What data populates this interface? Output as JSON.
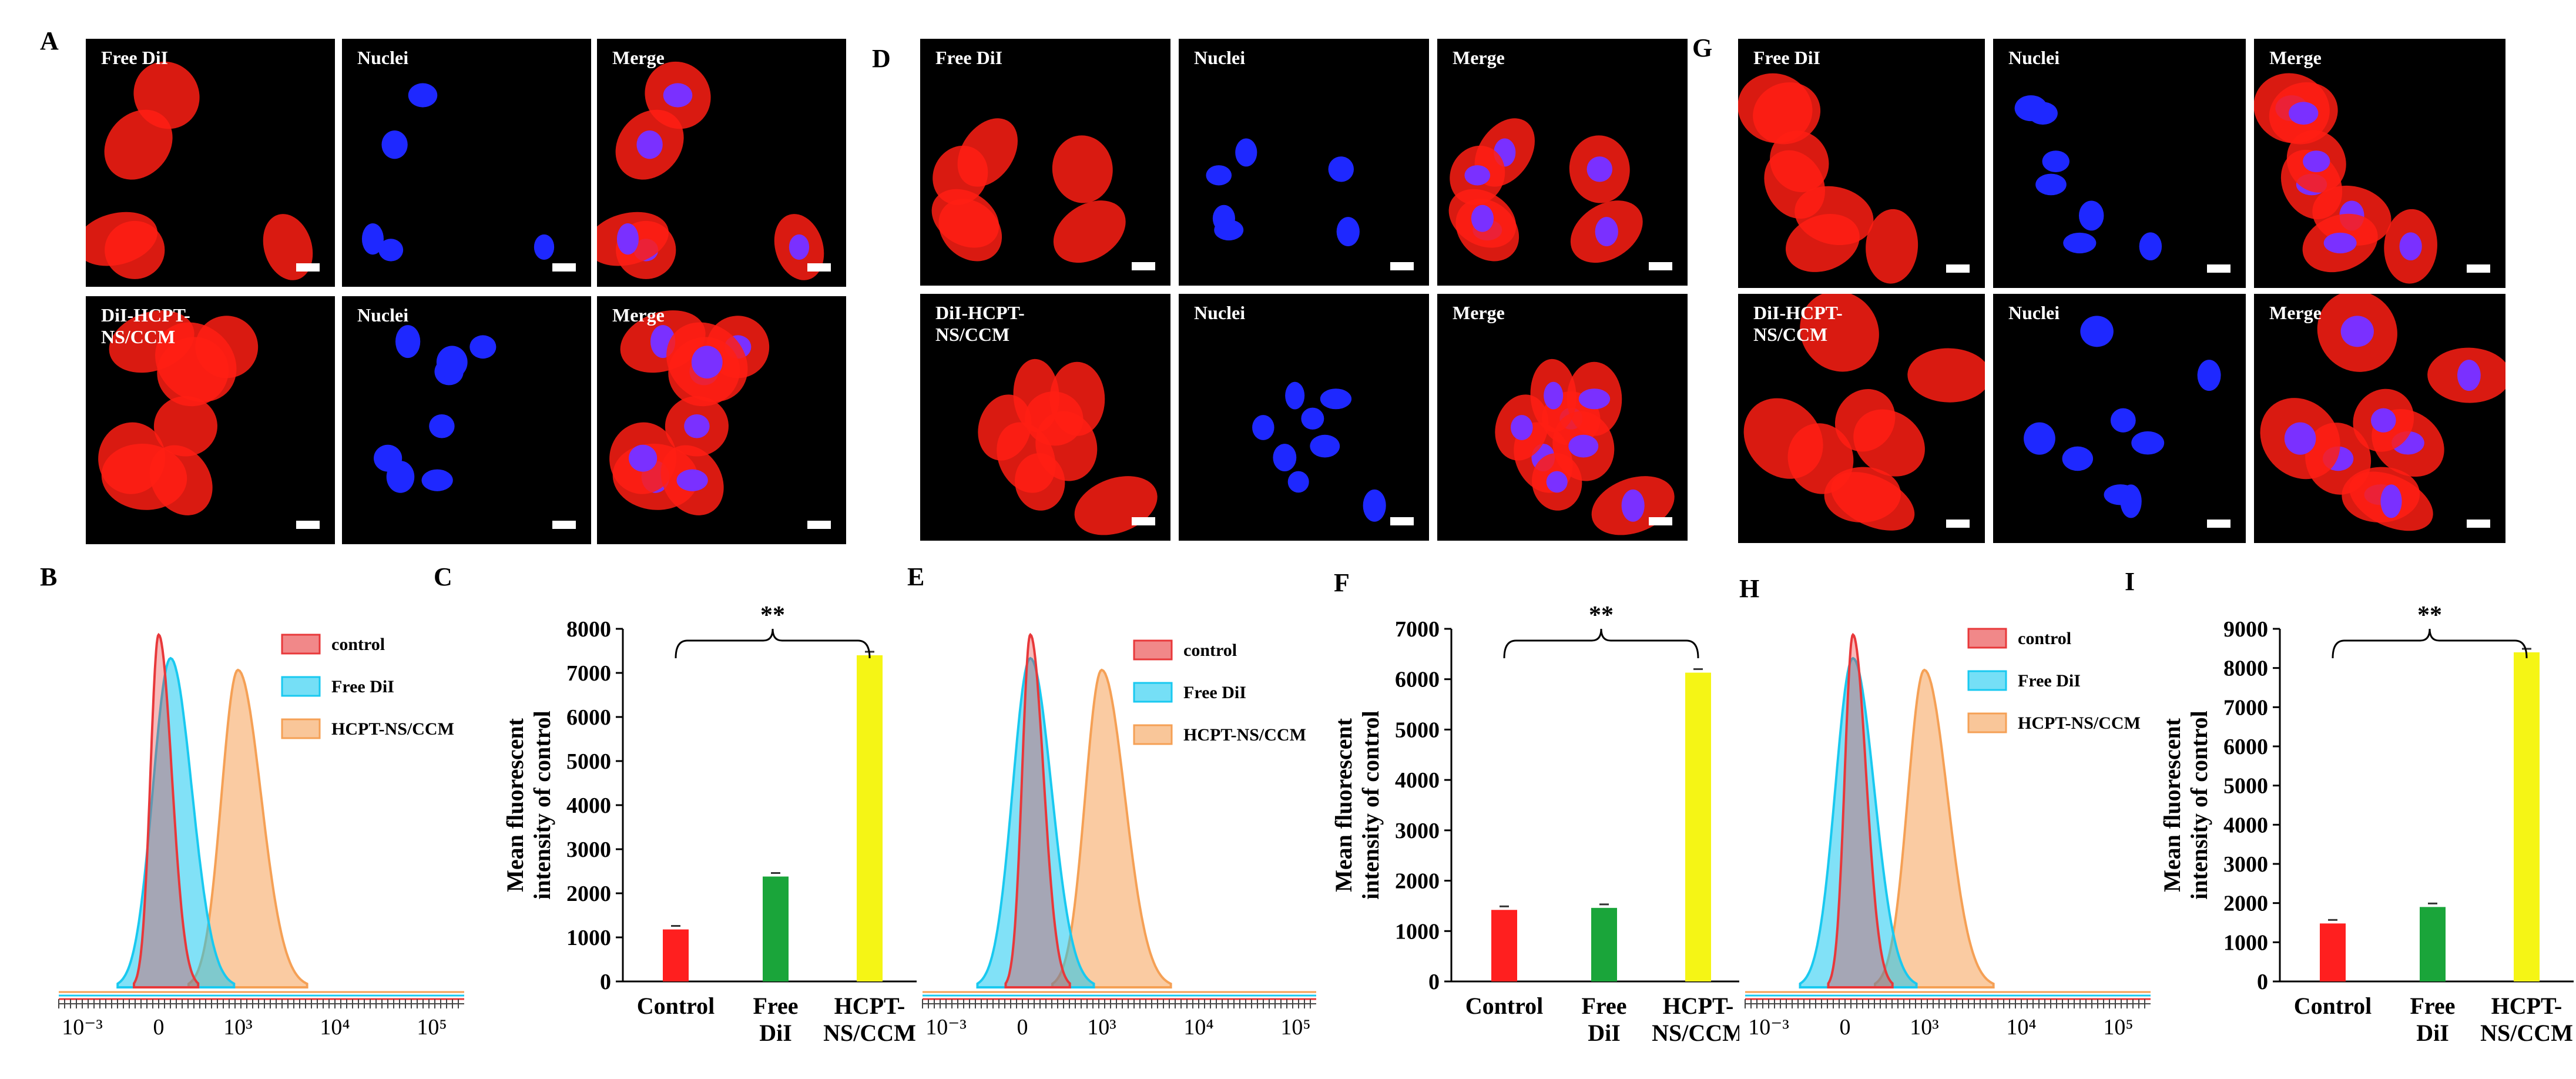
{
  "panel_labels": {
    "A": "A",
    "B": "B",
    "C": "C",
    "D": "D",
    "E": "E",
    "F": "F",
    "G": "G",
    "H": "H",
    "I": "I"
  },
  "microscopy": {
    "row1_labels": [
      "Free DiI",
      "Nuclei",
      "Merge"
    ],
    "row2_labels": [
      "DiI-HCPT-\nNS/CCM",
      "Nuclei",
      "Merge"
    ],
    "channel_colors": {
      "dil": "#ff1e14",
      "nuclei": "#1e28ff",
      "merge_nuclei": "#7a30ff"
    }
  },
  "flow_legend": {
    "control": "control",
    "free": "Free DiI",
    "hcpt": "HCPT-NS/CCM",
    "colors": {
      "control": "#e8383a",
      "free": "#19c9f0",
      "hcpt": "#f5a055"
    }
  },
  "flow_axis": {
    "tick_labels": [
      "10⁻³",
      "0",
      "10³",
      "10⁴",
      "10⁵"
    ]
  },
  "bar_common": {
    "ylabel_line1": "Mean fluorescent",
    "ylabel_line2": "intensity of control",
    "significance": "**",
    "categories": [
      "Control",
      "Free\nDiI",
      "HCPT-\nNS/CCM"
    ],
    "colors": [
      "#ff1f1f",
      "#1aa53a",
      "#f5f515"
    ]
  },
  "chart_data": [
    {
      "panel": "C",
      "type": "bar",
      "categories": [
        "Control",
        "Free DiI",
        "HCPT-NS/CCM"
      ],
      "values": [
        1180,
        2380,
        7400
      ],
      "ylabel": "Mean fluorescent intensity of control",
      "ylim": [
        0,
        8000
      ],
      "yticks": [
        0,
        1000,
        2000,
        3000,
        4000,
        5000,
        6000,
        7000,
        8000
      ],
      "annotation": "**"
    },
    {
      "panel": "F",
      "type": "bar",
      "categories": [
        "Control",
        "Free DiI",
        "HCPT-NS/CCM"
      ],
      "values": [
        1420,
        1460,
        6130
      ],
      "ylabel": "Mean fluorescent intensity of control",
      "ylim": [
        0,
        7000
      ],
      "yticks": [
        0,
        1000,
        2000,
        3000,
        4000,
        5000,
        6000,
        7000
      ],
      "annotation": "**"
    },
    {
      "panel": "I",
      "type": "bar",
      "categories": [
        "Control",
        "Free DiI",
        "HCPT-NS/CCM"
      ],
      "values": [
        1480,
        1900,
        8400
      ],
      "ylabel": "Mean fluorescent intensity of control",
      "ylim": [
        0,
        9000
      ],
      "yticks": [
        0,
        1000,
        2000,
        3000,
        4000,
        5000,
        6000,
        7000,
        8000,
        9000
      ],
      "annotation": "**"
    },
    {
      "panel": "B",
      "type": "area",
      "xlabel": "",
      "tick_labels": [
        "10⁻³",
        "0",
        "10³",
        "10⁴",
        "10⁵"
      ],
      "series": [
        {
          "name": "control",
          "peak_x": 0.0
        },
        {
          "name": "Free DiI",
          "peak_x": 0.15
        },
        {
          "name": "HCPT-NS/CCM",
          "peak_x": 1.0
        }
      ]
    },
    {
      "panel": "E",
      "type": "area",
      "xlabel": "",
      "tick_labels": [
        "10⁻³",
        "0",
        "10³",
        "10⁴",
        "10⁵"
      ],
      "series": [
        {
          "name": "control",
          "peak_x": 0.1
        },
        {
          "name": "Free DiI",
          "peak_x": 0.1
        },
        {
          "name": "HCPT-NS/CCM",
          "peak_x": 1.0
        }
      ]
    },
    {
      "panel": "H",
      "type": "area",
      "xlabel": "",
      "tick_labels": [
        "10⁻³",
        "0",
        "10³",
        "10⁴",
        "10⁵"
      ],
      "series": [
        {
          "name": "control",
          "peak_x": 0.1
        },
        {
          "name": "Free DiI",
          "peak_x": 0.1
        },
        {
          "name": "HCPT-NS/CCM",
          "peak_x": 1.0
        }
      ]
    }
  ]
}
